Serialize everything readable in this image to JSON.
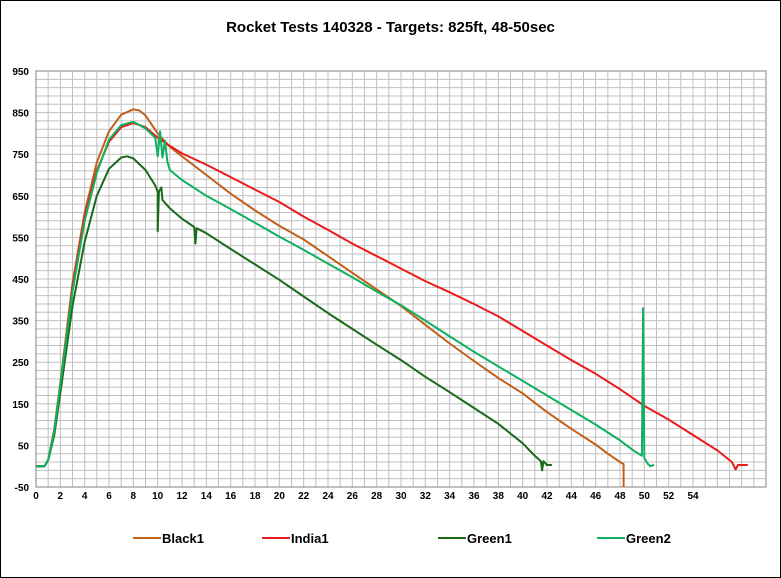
{
  "chart_data": {
    "type": "line",
    "title": "Rocket Tests 140328 - Targets: 825ft, 48-50sec",
    "xlabel": "",
    "ylabel": "",
    "xlim": [
      0,
      60
    ],
    "ylim": [
      -50,
      950
    ],
    "x_ticks": [
      0,
      2,
      4,
      6,
      8,
      10,
      12,
      14,
      16,
      18,
      20,
      22,
      24,
      26,
      28,
      30,
      32,
      34,
      36,
      38,
      40,
      42,
      44,
      46,
      48,
      50,
      52,
      54
    ],
    "y_ticks": [
      -50,
      50,
      150,
      250,
      350,
      450,
      550,
      650,
      750,
      850,
      950
    ],
    "grid": true,
    "legend_position": "bottom",
    "series": [
      {
        "name": "Black1",
        "color": "#C0601A",
        "points": [
          [
            0,
            0
          ],
          [
            0.7,
            0
          ],
          [
            1,
            15
          ],
          [
            1.5,
            90
          ],
          [
            2,
            200
          ],
          [
            3,
            440
          ],
          [
            4,
            610
          ],
          [
            5,
            730
          ],
          [
            6,
            805
          ],
          [
            7,
            845
          ],
          [
            8,
            858
          ],
          [
            8.5,
            855
          ],
          [
            9,
            843
          ],
          [
            10,
            800
          ],
          [
            11,
            768
          ],
          [
            12,
            745
          ],
          [
            14,
            700
          ],
          [
            16,
            655
          ],
          [
            18,
            615
          ],
          [
            20,
            578
          ],
          [
            22,
            545
          ],
          [
            24,
            505
          ],
          [
            26,
            465
          ],
          [
            28,
            425
          ],
          [
            30,
            385
          ],
          [
            32,
            340
          ],
          [
            34,
            295
          ],
          [
            36,
            253
          ],
          [
            38,
            212
          ],
          [
            40,
            175
          ],
          [
            42,
            130
          ],
          [
            44,
            90
          ],
          [
            46,
            52
          ],
          [
            47,
            30
          ],
          [
            48,
            10
          ],
          [
            48.3,
            5
          ],
          [
            48.3,
            -50
          ]
        ]
      },
      {
        "name": "India1",
        "color": "#E81C1C",
        "points": [
          [
            0,
            0
          ],
          [
            0.7,
            0
          ],
          [
            1,
            15
          ],
          [
            1.5,
            85
          ],
          [
            2,
            190
          ],
          [
            3,
            430
          ],
          [
            4,
            600
          ],
          [
            5,
            710
          ],
          [
            6,
            780
          ],
          [
            7,
            815
          ],
          [
            8,
            825
          ],
          [
            9,
            815
          ],
          [
            10,
            790
          ],
          [
            11,
            770
          ],
          [
            12,
            752
          ],
          [
            14,
            725
          ],
          [
            16,
            695
          ],
          [
            18,
            665
          ],
          [
            20,
            635
          ],
          [
            22,
            600
          ],
          [
            24,
            568
          ],
          [
            26,
            535
          ],
          [
            28,
            505
          ],
          [
            30,
            475
          ],
          [
            32,
            445
          ],
          [
            34,
            418
          ],
          [
            36,
            390
          ],
          [
            38,
            360
          ],
          [
            40,
            325
          ],
          [
            42,
            290
          ],
          [
            44,
            255
          ],
          [
            46,
            222
          ],
          [
            48,
            185
          ],
          [
            50,
            145
          ],
          [
            52,
            112
          ],
          [
            54,
            75
          ],
          [
            56,
            38
          ],
          [
            57.2,
            10
          ],
          [
            57.5,
            -8
          ],
          [
            57.7,
            3
          ],
          [
            58.5,
            3
          ]
        ]
      },
      {
        "name": "Green1",
        "color": "#1A6A1A",
        "points": [
          [
            0,
            0
          ],
          [
            0.7,
            0
          ],
          [
            1,
            15
          ],
          [
            1.5,
            75
          ],
          [
            2,
            175
          ],
          [
            3,
            385
          ],
          [
            4,
            540
          ],
          [
            5,
            650
          ],
          [
            6,
            715
          ],
          [
            7,
            742
          ],
          [
            7.5,
            745
          ],
          [
            8,
            740
          ],
          [
            9,
            712
          ],
          [
            9.8,
            675
          ],
          [
            10,
            660
          ],
          [
            10,
            565
          ],
          [
            10.1,
            660
          ],
          [
            10.3,
            670
          ],
          [
            10.4,
            640
          ],
          [
            11,
            620
          ],
          [
            12,
            595
          ],
          [
            13,
            575
          ],
          [
            13.1,
            535
          ],
          [
            13.2,
            572
          ],
          [
            14,
            560
          ],
          [
            16,
            522
          ],
          [
            18,
            485
          ],
          [
            20,
            448
          ],
          [
            22,
            408
          ],
          [
            24,
            368
          ],
          [
            26,
            330
          ],
          [
            28,
            292
          ],
          [
            30,
            255
          ],
          [
            32,
            215
          ],
          [
            34,
            178
          ],
          [
            36,
            140
          ],
          [
            38,
            102
          ],
          [
            40,
            55
          ],
          [
            41,
            25
          ],
          [
            41.5,
            12
          ],
          [
            41.6,
            -10
          ],
          [
            41.7,
            12
          ],
          [
            42,
            3
          ],
          [
            42.4,
            3
          ]
        ]
      },
      {
        "name": "Green2",
        "color": "#10B060",
        "points": [
          [
            0,
            0
          ],
          [
            0.7,
            0
          ],
          [
            1,
            15
          ],
          [
            1.5,
            85
          ],
          [
            2,
            195
          ],
          [
            3,
            420
          ],
          [
            4,
            590
          ],
          [
            5,
            705
          ],
          [
            6,
            785
          ],
          [
            7,
            820
          ],
          [
            8,
            828
          ],
          [
            9,
            812
          ],
          [
            9.8,
            790
          ],
          [
            10,
            745
          ],
          [
            10.2,
            805
          ],
          [
            10.4,
            742
          ],
          [
            10.6,
            782
          ],
          [
            10.8,
            732
          ],
          [
            11,
            712
          ],
          [
            12,
            688
          ],
          [
            14,
            650
          ],
          [
            16,
            618
          ],
          [
            18,
            585
          ],
          [
            20,
            552
          ],
          [
            22,
            520
          ],
          [
            24,
            487
          ],
          [
            26,
            454
          ],
          [
            28,
            420
          ],
          [
            30,
            387
          ],
          [
            32,
            350
          ],
          [
            34,
            312
          ],
          [
            36,
            275
          ],
          [
            38,
            240
          ],
          [
            40,
            205
          ],
          [
            42,
            170
          ],
          [
            44,
            135
          ],
          [
            46,
            100
          ],
          [
            48,
            62
          ],
          [
            49,
            40
          ],
          [
            49.8,
            25
          ],
          [
            49.9,
            380
          ],
          [
            50,
            20
          ],
          [
            50.3,
            5
          ],
          [
            50.5,
            0
          ],
          [
            50.8,
            3
          ]
        ]
      }
    ]
  }
}
